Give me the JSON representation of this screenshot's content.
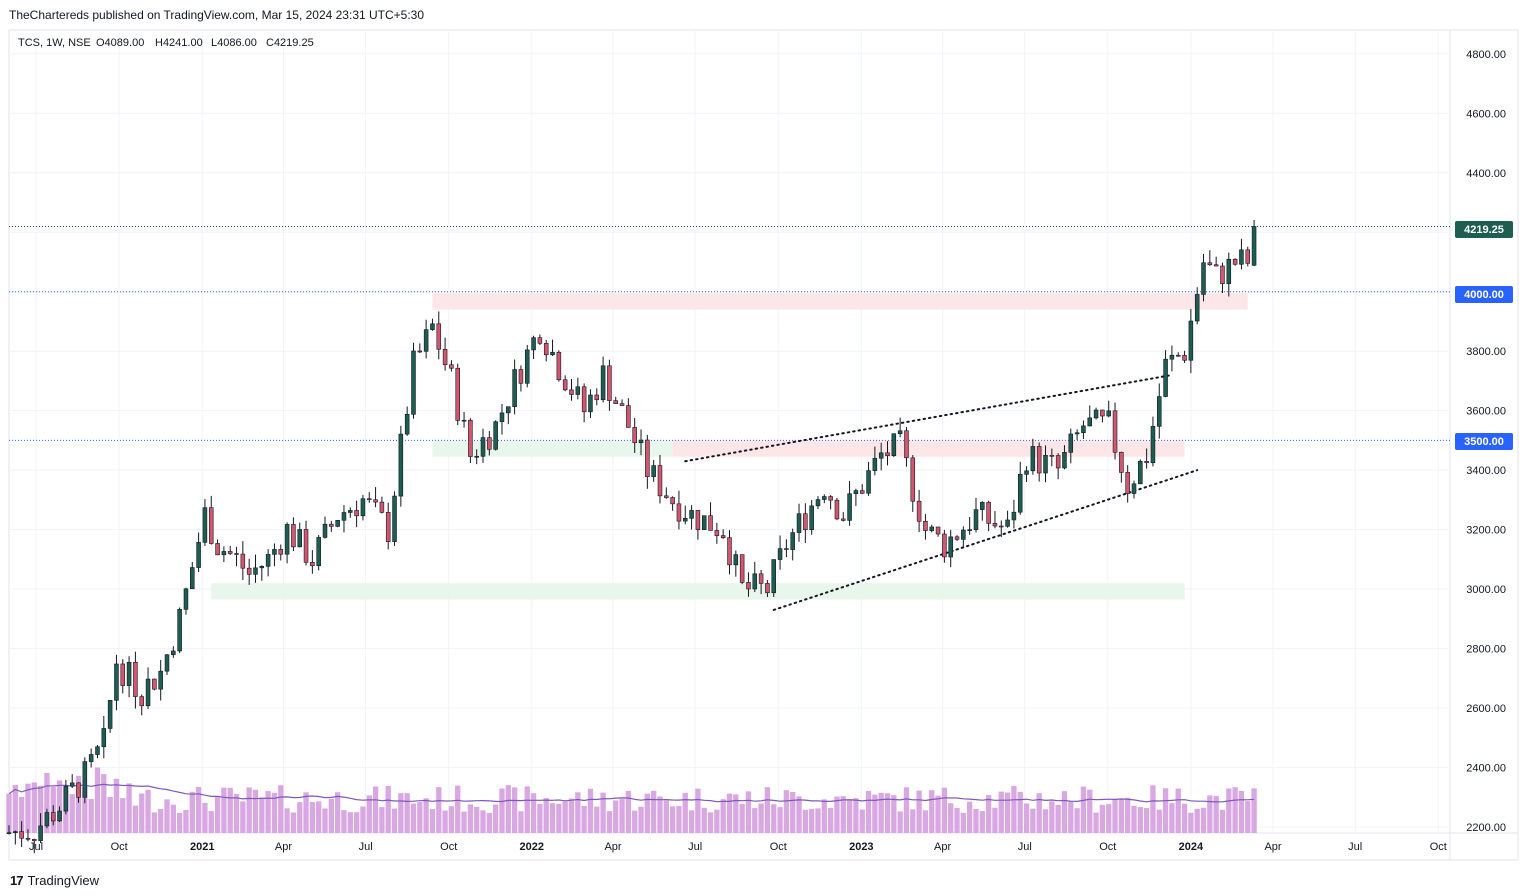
{
  "header": {
    "published_text": "TheChartereds published on TradingView.com, Mar 15, 2024 23:31 UTC+5:30"
  },
  "footer": {
    "logo_text": "TradingView"
  },
  "legend": {
    "symbol": "TCS, 1W, NSE",
    "open": "O4089.00",
    "high": "H4241.00",
    "low": "L4086.00",
    "close": "C4219.25"
  },
  "price_badges": {
    "last": {
      "label": "4219.25",
      "color": "#1e5e52"
    },
    "level_4000": {
      "label": "4000.00",
      "color": "#2962ff"
    },
    "level_3500": {
      "label": "3500.00",
      "color": "#2962ff"
    }
  },
  "colors": {
    "up": "#1e5e52",
    "down": "#d1566e",
    "volume": "#d9a8e3",
    "volume_ma": "#7e57c2",
    "supply_zone": "#fde3e6",
    "demand_zone": "#e6f5ea",
    "dotted_level": "#2962ff"
  },
  "chart_data": {
    "type": "candlestick",
    "symbol": "TCS",
    "interval": "1W",
    "exchange": "NSE",
    "y_range": [
      2180,
      4880
    ],
    "y_ticks": [
      2200,
      2400,
      2600,
      2800,
      3000,
      3200,
      3400,
      3600,
      3800,
      4000,
      4200,
      4400,
      4600,
      4800
    ],
    "x_range": [
      "2020-06-01",
      "2024-10-14"
    ],
    "x_ticks": [
      {
        "date": "2020-07-01",
        "label": "Jul",
        "bold": false
      },
      {
        "date": "2020-10-01",
        "label": "Oct",
        "bold": false
      },
      {
        "date": "2021-01-01",
        "label": "2021",
        "bold": true
      },
      {
        "date": "2021-04-01",
        "label": "Apr",
        "bold": false
      },
      {
        "date": "2021-07-01",
        "label": "Jul",
        "bold": false
      },
      {
        "date": "2021-10-01",
        "label": "Oct",
        "bold": false
      },
      {
        "date": "2022-01-01",
        "label": "2022",
        "bold": true
      },
      {
        "date": "2022-04-01",
        "label": "Apr",
        "bold": false
      },
      {
        "date": "2022-07-01",
        "label": "Jul",
        "bold": false
      },
      {
        "date": "2022-10-01",
        "label": "Oct",
        "bold": false
      },
      {
        "date": "2023-01-01",
        "label": "2023",
        "bold": true
      },
      {
        "date": "2023-04-01",
        "label": "Apr",
        "bold": false
      },
      {
        "date": "2023-07-01",
        "label": "Jul",
        "bold": false
      },
      {
        "date": "2023-10-01",
        "label": "Oct",
        "bold": false
      },
      {
        "date": "2024-01-01",
        "label": "2024",
        "bold": true
      },
      {
        "date": "2024-04-01",
        "label": "Apr",
        "bold": false
      },
      {
        "date": "2024-07-01",
        "label": "Jul",
        "bold": false
      },
      {
        "date": "2024-10-01",
        "label": "Oct",
        "bold": false
      }
    ],
    "anchors": [
      [
        "2020-06-01",
        2180
      ],
      [
        "2020-07-06",
        2190
      ],
      [
        "2020-08-03",
        2270
      ],
      [
        "2020-08-31",
        2370
      ],
      [
        "2020-09-21",
        2480
      ],
      [
        "2020-10-05",
        2760
      ],
      [
        "2020-10-19",
        2700
      ],
      [
        "2020-11-02",
        2660
      ],
      [
        "2020-11-23",
        2720
      ],
      [
        "2020-12-14",
        2900
      ],
      [
        "2021-01-11",
        3250
      ],
      [
        "2021-01-25",
        3150
      ],
      [
        "2021-02-15",
        3100
      ],
      [
        "2021-03-01",
        3050
      ],
      [
        "2021-03-22",
        3100
      ],
      [
        "2021-04-12",
        3200
      ],
      [
        "2021-05-10",
        3100
      ],
      [
        "2021-06-07",
        3250
      ],
      [
        "2021-07-05",
        3300
      ],
      [
        "2021-08-02",
        3200
      ],
      [
        "2021-08-30",
        3750
      ],
      [
        "2021-09-20",
        3880
      ],
      [
        "2021-10-11",
        3700
      ],
      [
        "2021-11-01",
        3450
      ],
      [
        "2021-11-29",
        3550
      ],
      [
        "2021-12-20",
        3700
      ],
      [
        "2022-01-17",
        3880
      ],
      [
        "2022-02-07",
        3750
      ],
      [
        "2022-03-07",
        3600
      ],
      [
        "2022-03-28",
        3720
      ],
      [
        "2022-04-25",
        3550
      ],
      [
        "2022-05-16",
        3400
      ],
      [
        "2022-06-13",
        3300
      ],
      [
        "2022-07-04",
        3250
      ],
      [
        "2022-08-08",
        3200
      ],
      [
        "2022-08-29",
        3000
      ],
      [
        "2022-09-26",
        3000
      ],
      [
        "2022-10-17",
        3150
      ],
      [
        "2022-11-28",
        3350
      ],
      [
        "2022-12-19",
        3250
      ],
      [
        "2023-01-30",
        3450
      ],
      [
        "2023-02-20",
        3480
      ],
      [
        "2023-03-20",
        3200
      ],
      [
        "2023-04-10",
        3150
      ],
      [
        "2023-05-15",
        3250
      ],
      [
        "2023-06-19",
        3200
      ],
      [
        "2023-07-10",
        3450
      ],
      [
        "2023-08-14",
        3400
      ],
      [
        "2023-09-11",
        3550
      ],
      [
        "2023-10-09",
        3550
      ],
      [
        "2023-10-30",
        3350
      ],
      [
        "2023-11-20",
        3450
      ],
      [
        "2023-12-11",
        3750
      ],
      [
        "2024-01-01",
        3800
      ],
      [
        "2024-01-22",
        4100
      ],
      [
        "2024-02-05",
        4050
      ],
      [
        "2024-02-26",
        4100
      ],
      [
        "2024-03-11",
        4100
      ]
    ],
    "last_candle": {
      "date": "2024-03-11",
      "open": 4089.0,
      "high": 4241.0,
      "low": 4086.0,
      "close": 4219.25
    },
    "horizontal_levels": [
      4219.25,
      4000,
      3500
    ],
    "zones": [
      {
        "kind": "supply",
        "from": "2021-09-13",
        "to": "2024-03-04",
        "low": 3940,
        "high": 3995
      },
      {
        "kind": "supply",
        "from": "2022-06-06",
        "to": "2023-12-25",
        "low": 3445,
        "high": 3500
      },
      {
        "kind": "demand",
        "from": "2021-09-13",
        "to": "2022-06-06",
        "low": 3445,
        "high": 3500
      },
      {
        "kind": "demand",
        "from": "2021-01-11",
        "to": "2023-12-25",
        "low": 2965,
        "high": 3020
      }
    ],
    "trend_lines": [
      {
        "from": [
          "2022-06-20",
          3430
        ],
        "to": [
          "2023-12-11",
          3720
        ]
      },
      {
        "from": [
          "2022-09-26",
          2930
        ],
        "to": [
          "2024-01-08",
          3400
        ]
      }
    ],
    "volume_ma_level": 0.38
  }
}
